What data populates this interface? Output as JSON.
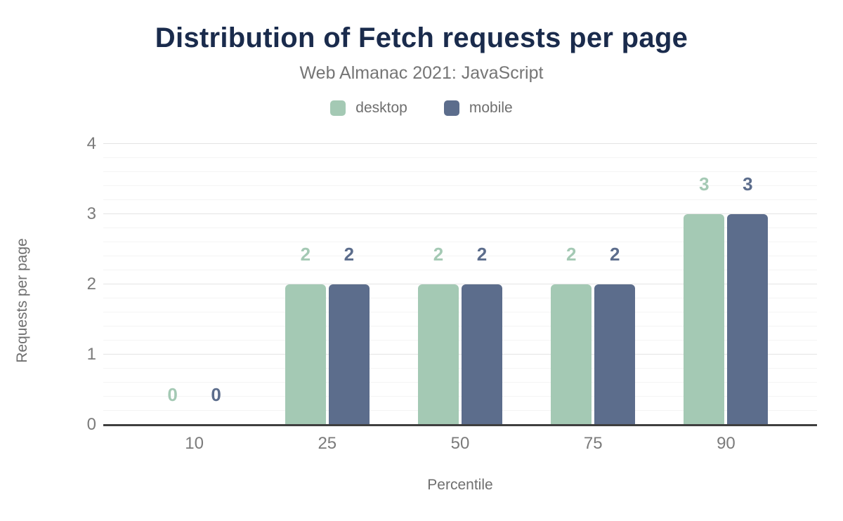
{
  "header": {
    "title": "Distribution of Fetch requests per page",
    "subtitle": "Web Almanac 2021: JavaScript"
  },
  "legend": [
    {
      "label": "desktop",
      "color": "#a4c9b4"
    },
    {
      "label": "mobile",
      "color": "#5c6d8c"
    }
  ],
  "chart_data": {
    "type": "bar",
    "title": "Distribution of Fetch requests per page",
    "subtitle": "Web Almanac 2021: JavaScript",
    "categories": [
      "10",
      "25",
      "50",
      "75",
      "90"
    ],
    "series": [
      {
        "name": "desktop",
        "color": "#a4c9b4",
        "values": [
          0,
          2,
          2,
          2,
          3
        ]
      },
      {
        "name": "mobile",
        "color": "#5c6d8c",
        "values": [
          0,
          2,
          2,
          2,
          3
        ]
      }
    ],
    "xlabel": "Percentile",
    "ylabel": "Requests per page",
    "ylim": [
      0,
      4
    ],
    "yticks": [
      0,
      1,
      2,
      3,
      4
    ],
    "minor_grid_step": 0.2,
    "grid": "horizontal-major-and-minor",
    "legend_position": "top",
    "data_labels": true
  },
  "colors": {
    "title_text": "#1a2b4c",
    "subtitle_text": "#757575",
    "axis_tick_text": "#7b7b7b",
    "axis_title_text": "#6f6f6f",
    "baseline": "#3f3f3f",
    "major_grid": "#e4e4e4",
    "minor_grid": "#f4f4f4",
    "background": "#ffffff"
  }
}
